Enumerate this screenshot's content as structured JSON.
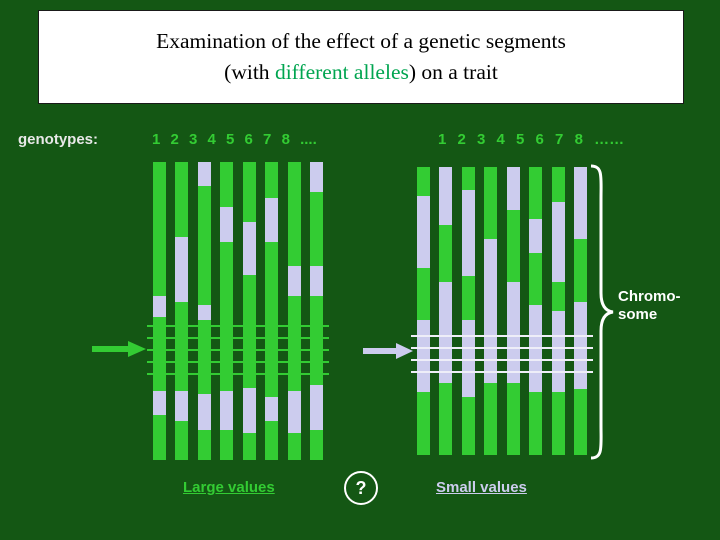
{
  "colors": {
    "background": "#145714",
    "green": "#33cc33",
    "lavender": "#ccccee",
    "white": "#ffffff",
    "title_highlight": "#00a550"
  },
  "title": {
    "line1": "Examination of the effect of a genetic segments",
    "line2_prefix": "(with ",
    "line2_highlight": "different alleles",
    "line2_suffix": ") on a trait"
  },
  "genotypes_label": "genotypes:",
  "question_mark": "?",
  "chromosome_label": {
    "line1": "Chromo-",
    "line2": "some"
  },
  "left_group": {
    "numbers": "1 2 3 4 5 6 7 8 ....",
    "label": "Large values",
    "arrow_color": "#33cc33",
    "band_lines": {
      "color": "#33cc33",
      "offsets": [
        163,
        175,
        187,
        199,
        211
      ]
    },
    "bars": [
      [
        [
          "g",
          45
        ],
        [
          "l",
          7
        ],
        [
          "g",
          25
        ],
        [
          "l",
          8
        ],
        [
          "g",
          15
        ]
      ],
      [
        [
          "g",
          25
        ],
        [
          "l",
          22
        ],
        [
          "g",
          30
        ],
        [
          "l",
          10
        ],
        [
          "g",
          13
        ]
      ],
      [
        [
          "l",
          8
        ],
        [
          "g",
          40
        ],
        [
          "l",
          5
        ],
        [
          "g",
          25
        ],
        [
          "l",
          12
        ],
        [
          "g",
          10
        ]
      ],
      [
        [
          "g",
          15
        ],
        [
          "l",
          12
        ],
        [
          "g",
          50
        ],
        [
          "l",
          13
        ],
        [
          "g",
          10
        ]
      ],
      [
        [
          "g",
          20
        ],
        [
          "l",
          18
        ],
        [
          "g",
          38
        ],
        [
          "l",
          15
        ],
        [
          "g",
          9
        ]
      ],
      [
        [
          "g",
          12
        ],
        [
          "l",
          15
        ],
        [
          "g",
          52
        ],
        [
          "l",
          8
        ],
        [
          "g",
          13
        ]
      ],
      [
        [
          "g",
          35
        ],
        [
          "l",
          10
        ],
        [
          "g",
          32
        ],
        [
          "l",
          14
        ],
        [
          "g",
          9
        ]
      ],
      [
        [
          "l",
          10
        ],
        [
          "g",
          25
        ],
        [
          "l",
          10
        ],
        [
          "g",
          30
        ],
        [
          "l",
          15
        ],
        [
          "g",
          10
        ]
      ]
    ]
  },
  "right_group": {
    "numbers": "1 2 3 4 5 6 7 8 ……",
    "label": "Small values",
    "arrow_color": "#ccccee",
    "band_lines": {
      "color": "#eeeef8",
      "offsets": [
        168,
        180,
        192,
        204
      ]
    },
    "bars": [
      [
        [
          "g",
          10
        ],
        [
          "l",
          25
        ],
        [
          "g",
          18
        ],
        [
          "l",
          25
        ],
        [
          "g",
          22
        ]
      ],
      [
        [
          "l",
          20
        ],
        [
          "g",
          20
        ],
        [
          "l",
          35
        ],
        [
          "g",
          25
        ]
      ],
      [
        [
          "g",
          8
        ],
        [
          "l",
          30
        ],
        [
          "g",
          15
        ],
        [
          "l",
          27
        ],
        [
          "g",
          20
        ]
      ],
      [
        [
          "g",
          25
        ],
        [
          "l",
          50
        ],
        [
          "g",
          25
        ]
      ],
      [
        [
          "l",
          15
        ],
        [
          "g",
          25
        ],
        [
          "l",
          35
        ],
        [
          "g",
          25
        ]
      ],
      [
        [
          "g",
          18
        ],
        [
          "l",
          12
        ],
        [
          "g",
          18
        ],
        [
          "l",
          30
        ],
        [
          "g",
          22
        ]
      ],
      [
        [
          "g",
          12
        ],
        [
          "l",
          28
        ],
        [
          "g",
          10
        ],
        [
          "l",
          28
        ],
        [
          "g",
          22
        ]
      ],
      [
        [
          "l",
          25
        ],
        [
          "g",
          22
        ],
        [
          "l",
          30
        ],
        [
          "g",
          23
        ]
      ]
    ]
  }
}
